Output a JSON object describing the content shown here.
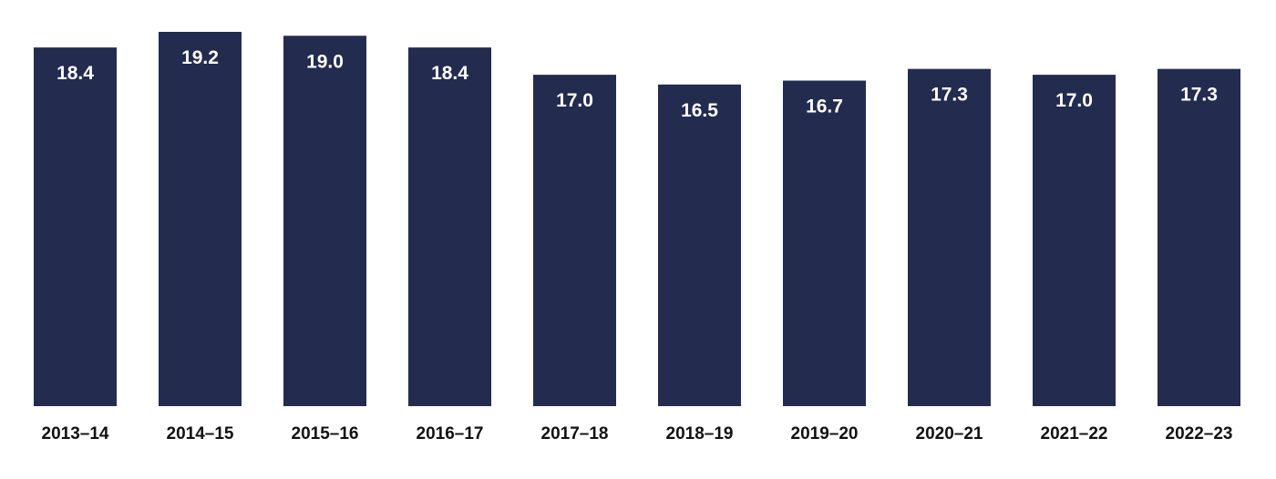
{
  "chart_data": {
    "type": "bar",
    "categories": [
      "2013–14",
      "2014–15",
      "2015–16",
      "2016–17",
      "2017–18",
      "2018–19",
      "2019–20",
      "2020–21",
      "2021–22",
      "2022–23"
    ],
    "values": [
      18.4,
      19.2,
      19.0,
      18.4,
      17.0,
      16.5,
      16.7,
      17.3,
      17.0,
      17.3
    ],
    "value_labels": [
      "18.4",
      "19.2",
      "19.0",
      "18.4",
      "17.0",
      "16.5",
      "16.7",
      "17.3",
      "17.0",
      "17.3"
    ],
    "title": "",
    "xlabel": "",
    "ylabel": "",
    "ylim": [
      0,
      19.2
    ],
    "grid": false,
    "legend": "none",
    "bar_color": "#232b4f",
    "label_color": "#ffffff"
  }
}
